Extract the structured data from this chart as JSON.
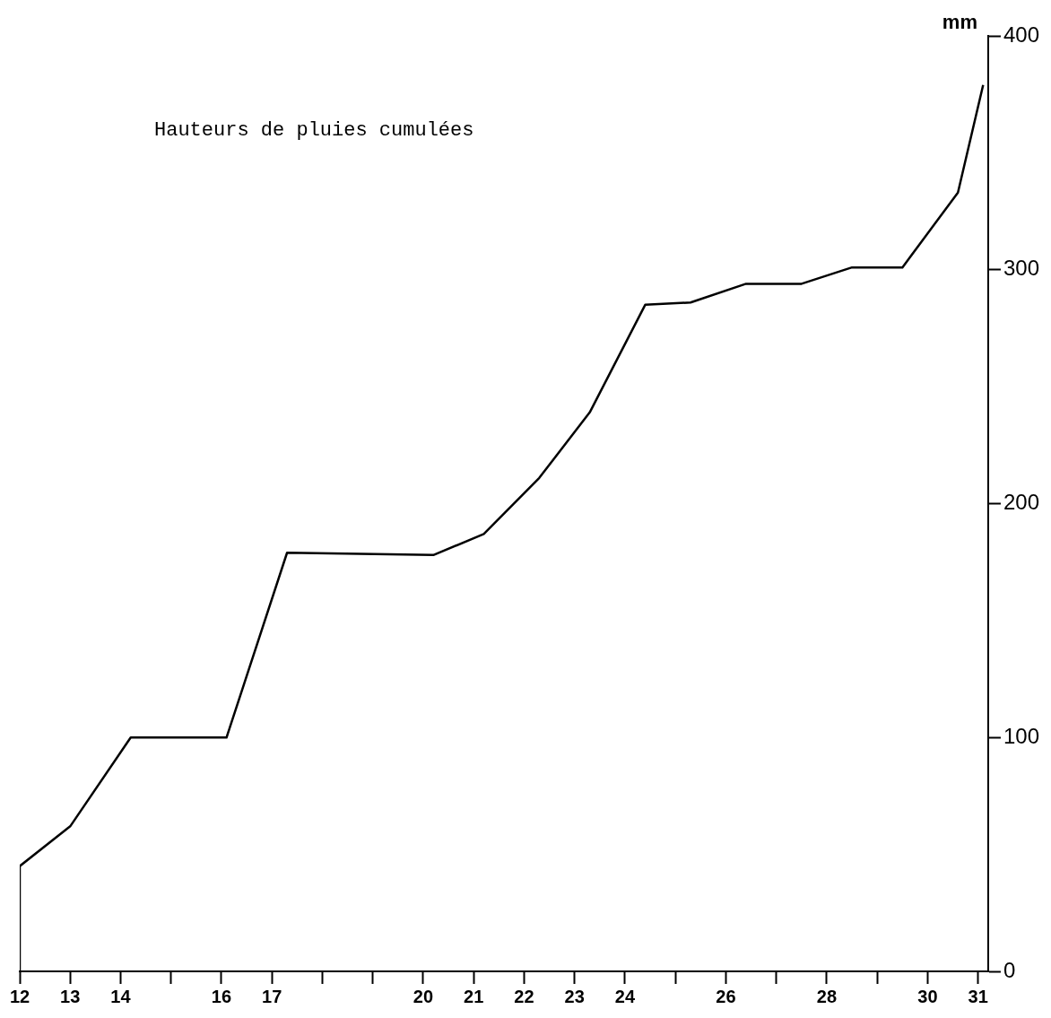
{
  "chart_data": {
    "type": "line",
    "title": "Hauteurs de pluies cumulées",
    "ylabel": "mm",
    "x": [
      12,
      12,
      13,
      14.2,
      16.1,
      17.3,
      20.2,
      21.2,
      22.3,
      23.3,
      24.4,
      25.3,
      26.4,
      27.5,
      28.5,
      29.5,
      30.6,
      31.1
    ],
    "series": [
      {
        "color": "#000000",
        "values": [
          0,
          45,
          62,
          100,
          100,
          179,
          178,
          187,
          211,
          239,
          285,
          286,
          294,
          294,
          301,
          301,
          333,
          379
        ]
      }
    ],
    "xlim": [
      12,
      31.2
    ],
    "xticks": [
      12,
      13,
      14,
      {
        "value": 15,
        "label": null
      },
      16,
      17,
      {
        "value": 18,
        "label": null
      },
      {
        "value": 19,
        "label": null
      },
      20,
      21,
      22,
      23,
      24,
      {
        "value": 25,
        "label": null
      },
      26,
      {
        "value": 27,
        "label": null
      },
      28,
      {
        "value": 29,
        "label": null
      },
      30,
      31
    ],
    "ylim": [
      0,
      400
    ],
    "yticks": [
      0,
      100,
      200,
      300,
      400
    ],
    "grid": false,
    "legend": false,
    "marker": "none",
    "line_style": "solid"
  }
}
